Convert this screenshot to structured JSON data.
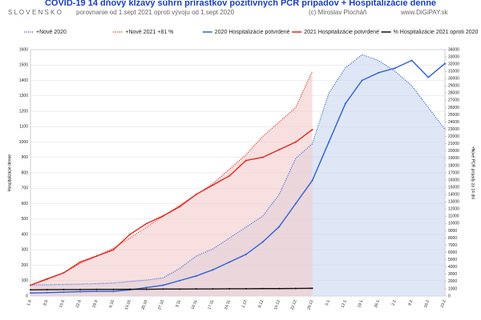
{
  "chart_data": {
    "type": "line",
    "title": "COVID-19 14 dňový kĺzavý súhrn prírastkov pozitívnych PCR prípadov + Hospitalizácie denne",
    "subtitle": [
      "S L O V E N S K O",
      "porovnanie od 1.sept 2021 oproti vývoju od 1.sept 2020",
      "(c) Miroslav Plocháň",
      "www.DiGiPAY.sk"
    ],
    "ylabel": "Hospitalizácie denne",
    "y2label": "+Nové PCR prípady za 14 dní",
    "categories": [
      "1.9.",
      "8.9.",
      "15.9.",
      "22.9.",
      "29.9.",
      "6.10.",
      "13.10.",
      "20.10.",
      "27.10.",
      "3.11.",
      "10.11.",
      "17.11.",
      "24.11.",
      "1.12.",
      "8.12.",
      "15.12.",
      "22.12.",
      "29.12.",
      "5.1.",
      "12.1.",
      "19.1.",
      "26.1.",
      "2.2.",
      "9.2.",
      "16.2.",
      "23.2."
    ],
    "series": [
      {
        "name": "+Nové 2020",
        "color": "#2a5fd8",
        "axis": "y2",
        "style": "dotted",
        "area": "#c9d5ee",
        "values": [
          1500,
          1550,
          1600,
          1650,
          1700,
          1800,
          2000,
          2200,
          2500,
          3800,
          5500,
          6500,
          8000,
          9500,
          11000,
          14000,
          19000,
          21000,
          28000,
          31500,
          33300,
          32500,
          31000,
          29000,
          26000,
          23000
        ]
      },
      {
        "name": "+Nové 2021 +81 %",
        "color": "#e8231b",
        "axis": "y2",
        "style": "dotted",
        "area": "#f4cccc",
        "values": [
          1500,
          2400,
          3200,
          4500,
          5500,
          6600,
          8000,
          9500,
          11000,
          12500,
          14000,
          15500,
          17500,
          19500,
          22000,
          24000,
          26000,
          31000,
          null,
          null,
          null,
          null,
          null,
          null,
          null,
          null
        ]
      },
      {
        "name": "2020 Hospitalizácie potvrdené",
        "color": "#2a5fd8",
        "axis": "y",
        "style": "solid",
        "values": [
          20,
          22,
          25,
          28,
          30,
          30,
          40,
          55,
          70,
          100,
          130,
          170,
          220,
          270,
          350,
          450,
          600,
          750,
          1000,
          1250,
          1400,
          1450,
          1480,
          1530,
          1420,
          1510
        ]
      },
      {
        "name": "2021 Hospitalizácie potvrdené",
        "color": "#e8231b",
        "axis": "y",
        "style": "solid",
        "values": [
          70,
          110,
          150,
          220,
          260,
          300,
          400,
          470,
          520,
          580,
          660,
          720,
          780,
          880,
          900,
          950,
          1000,
          1080,
          null,
          null,
          null,
          null,
          null,
          null,
          null,
          null
        ]
      },
      {
        "name": "% Hospitalizácie 2021 oproti 2020",
        "color": "#111111",
        "axis": "y",
        "style": "solid",
        "values": [
          40,
          41,
          42,
          42,
          43,
          43,
          44,
          44,
          45,
          45,
          46,
          46,
          47,
          47,
          48,
          48,
          49,
          50,
          null,
          null,
          null,
          null,
          null,
          null,
          null,
          null
        ]
      }
    ],
    "ylim": [
      0,
      1600
    ],
    "yticks": [
      0,
      100,
      200,
      300,
      400,
      500,
      600,
      700,
      800,
      900,
      1000,
      1100,
      1200,
      1300,
      1400,
      1500,
      1600
    ],
    "y2lim": [
      0,
      34000
    ],
    "y2ticks": [
      0,
      1000,
      2000,
      3000,
      4000,
      5000,
      6000,
      7000,
      8000,
      9000,
      10000,
      11000,
      12000,
      13000,
      14000,
      15000,
      16000,
      17000,
      18000,
      19000,
      20000,
      21000,
      22000,
      23000,
      24000,
      25000,
      26000,
      27000,
      28000,
      29000,
      30000,
      31000,
      32000,
      33000,
      34000
    ],
    "grid": true,
    "legend": "top"
  }
}
